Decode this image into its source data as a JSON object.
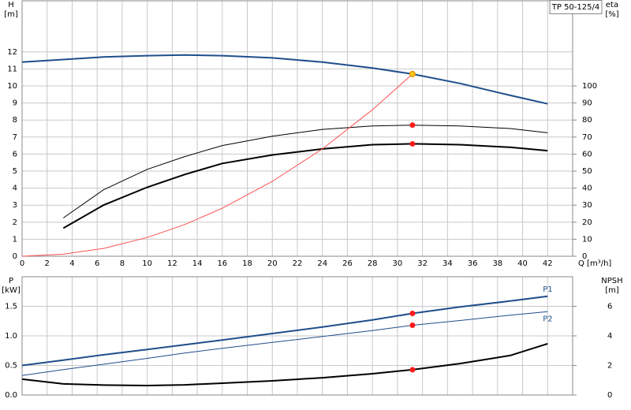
{
  "chart_data": [
    {
      "type": "line",
      "legend_box": "TP 50-125/4",
      "ylabel": "H",
      "yunit": "[m]",
      "y2label": "eta",
      "y2unit": "[%]",
      "xlabel": "Q [m³/h]",
      "x": [
        0,
        3.3,
        6.5,
        10,
        13,
        16,
        20,
        24,
        28,
        31.2,
        35,
        39,
        42
      ],
      "xlim": [
        0,
        44
      ],
      "xticks": [
        0,
        2,
        4,
        6,
        8,
        10,
        12,
        14,
        16,
        18,
        20,
        22,
        24,
        26,
        28,
        30,
        32,
        34,
        36,
        38,
        40,
        42
      ],
      "show_xtick_labels": true,
      "ylim": [
        0,
        15
      ],
      "yticks": [
        0,
        1,
        2,
        3,
        4,
        5,
        6,
        7,
        8,
        9,
        10,
        11,
        12
      ],
      "y2lim": [
        0,
        150
      ],
      "y2ticks": [
        0,
        10,
        20,
        30,
        40,
        50,
        60,
        70,
        80,
        90,
        100
      ],
      "grid": true,
      "series": [
        {
          "color": "#1f4e8c",
          "style": "thick",
          "values": [
            11.4,
            11.55,
            11.7,
            11.78,
            11.82,
            11.78,
            11.65,
            11.4,
            11.05,
            10.7,
            10.15,
            9.45,
            8.95
          ]
        },
        {
          "color": "#000000",
          "style": "thin",
          "axis": "y2",
          "values": [
            null,
            22.5,
            39,
            51,
            58.5,
            65,
            70.5,
            74.5,
            76.5,
            77,
            76.5,
            75,
            72.5
          ]
        },
        {
          "color": "#000000",
          "style": "thick",
          "axis": "y2",
          "values": [
            null,
            16.5,
            30,
            40.5,
            48,
            54.5,
            59.5,
            63,
            65.5,
            66,
            65.5,
            64,
            62
          ]
        },
        {
          "color": "#ff5050",
          "style": "thin",
          "values": [
            0,
            0.12,
            0.46,
            1.1,
            1.86,
            2.82,
            4.4,
            6.3,
            8.6,
            10.7,
            null,
            null,
            null
          ]
        }
      ],
      "markers": [
        {
          "x": 31.2,
          "y": 10.7,
          "color": "#f5c518"
        },
        {
          "x": 31.2,
          "y": 77,
          "color": "#ff1a1a",
          "axis": "y2"
        },
        {
          "x": 31.2,
          "y": 66,
          "color": "#ff1a1a",
          "axis": "y2"
        }
      ]
    },
    {
      "type": "line",
      "ylabel": "P",
      "yunit": "[kW]",
      "y2label": "NPSH",
      "y2unit": "[m]",
      "x": [
        0,
        3.3,
        6.5,
        10,
        13,
        16,
        20,
        24,
        28,
        31.2,
        35,
        39,
        42
      ],
      "xlim": [
        0,
        44
      ],
      "xticks": [
        0,
        2,
        4,
        6,
        8,
        10,
        12,
        14,
        16,
        18,
        20,
        22,
        24,
        26,
        28,
        30,
        32,
        34,
        36,
        38,
        40,
        42
      ],
      "show_xtick_labels": false,
      "ylim": [
        0,
        2
      ],
      "yticks": [
        {
          "value": 0,
          "label": "0.0"
        },
        {
          "value": 0.5,
          "label": "0.5"
        },
        {
          "value": 1,
          "label": "1.0"
        },
        {
          "value": 1.5,
          "label": "1.5"
        }
      ],
      "y2lim": [
        0,
        8
      ],
      "y2ticks": [
        0,
        2,
        4,
        6
      ],
      "grid": true,
      "series": [
        {
          "name": "P1",
          "color": "#1f4e8c",
          "style": "thick",
          "label_side": "above",
          "values": [
            0.5,
            0.59,
            0.68,
            0.77,
            0.85,
            0.93,
            1.04,
            1.15,
            1.27,
            1.38,
            1.49,
            1.59,
            1.67
          ]
        },
        {
          "name": "P2",
          "color": "#1f4e8c",
          "style": "thin",
          "label_side": "below",
          "values": [
            0.33,
            0.43,
            0.52,
            0.62,
            0.71,
            0.79,
            0.89,
            0.99,
            1.09,
            1.18,
            1.26,
            1.35,
            1.41
          ]
        },
        {
          "color": "#000000",
          "style": "thick",
          "axis": "y2",
          "values": [
            1.07,
            0.75,
            0.67,
            0.64,
            0.69,
            0.8,
            0.96,
            1.17,
            1.44,
            1.71,
            2.13,
            2.67,
            3.47
          ]
        }
      ],
      "markers": [
        {
          "x": 31.2,
          "y": 1.38,
          "color": "#ff1a1a"
        },
        {
          "x": 31.2,
          "y": 1.18,
          "color": "#ff1a1a"
        },
        {
          "x": 31.2,
          "y": 1.71,
          "color": "#ff1a1a",
          "axis": "y2"
        }
      ]
    }
  ]
}
